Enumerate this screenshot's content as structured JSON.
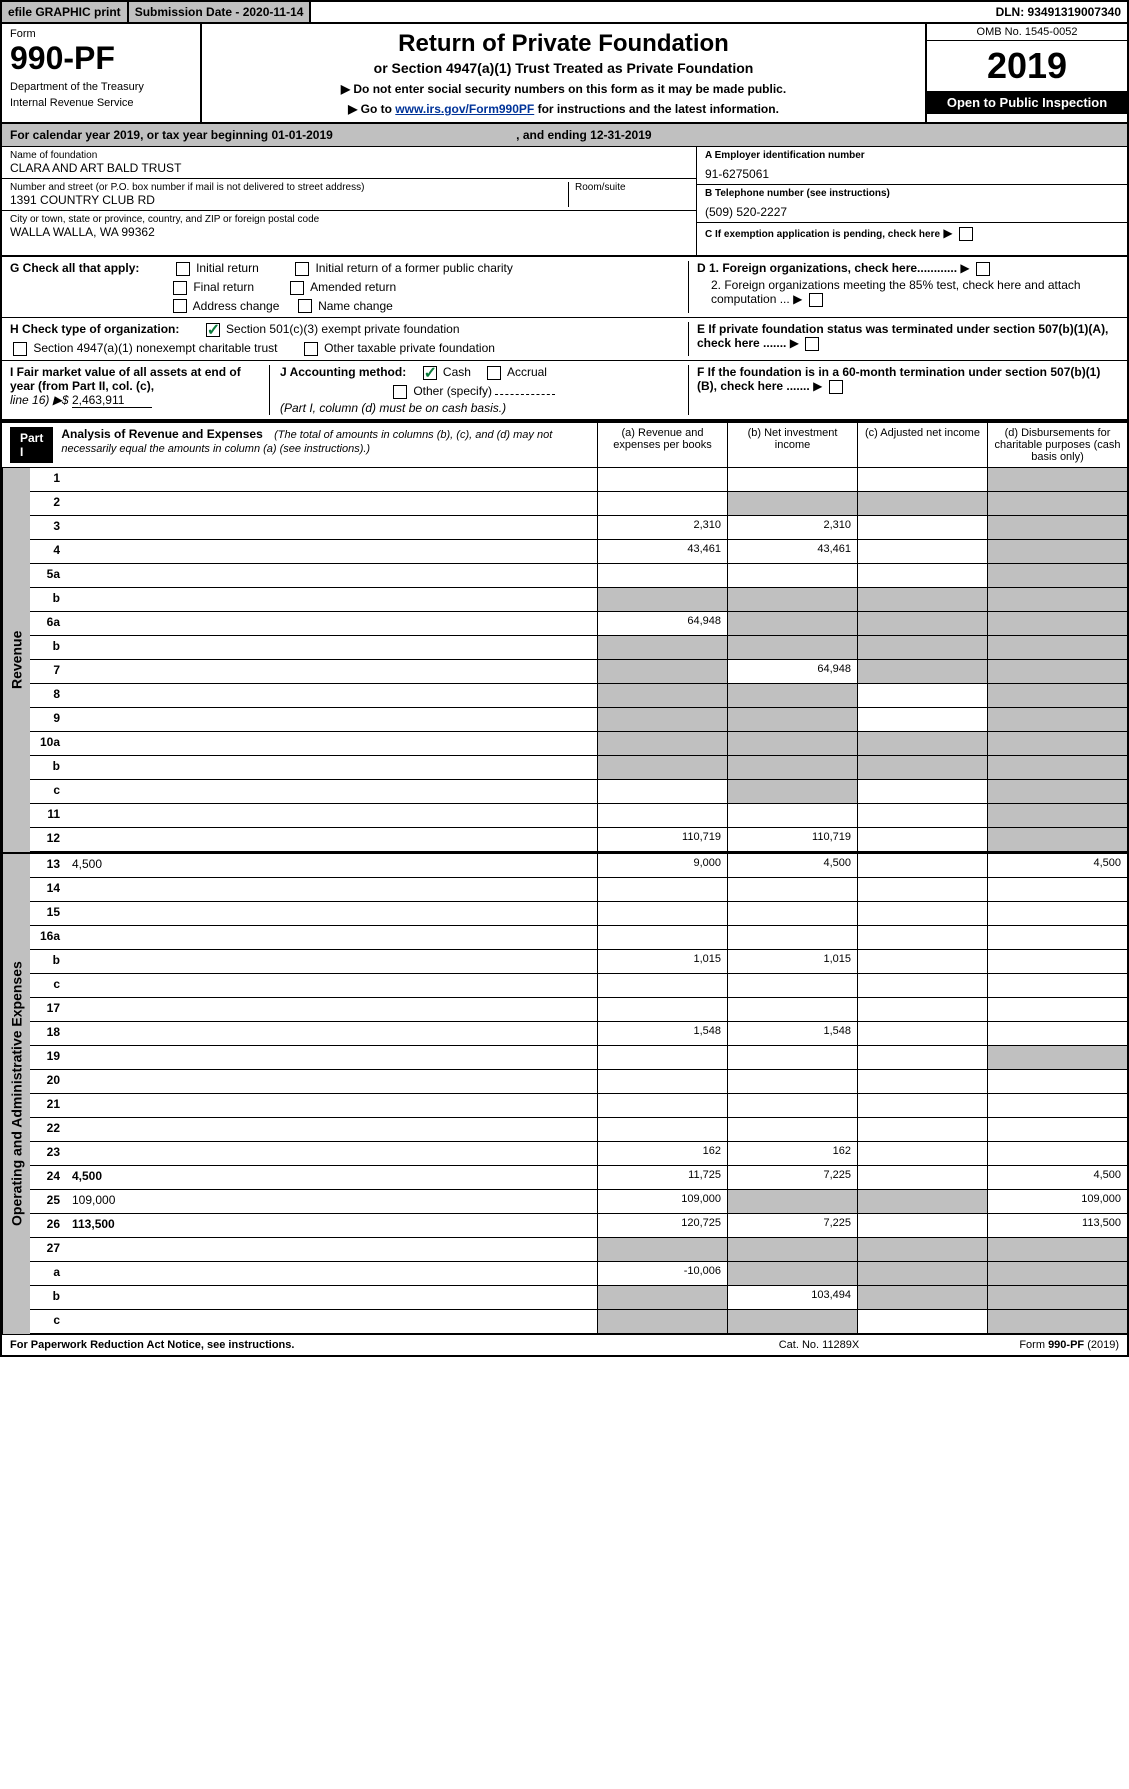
{
  "topbar": {
    "efile": "efile GRAPHIC print",
    "subdate_label": "Submission Date - 2020-11-14",
    "dln": "DLN: 93491319007340"
  },
  "header": {
    "form_label": "Form",
    "form_no": "990-PF",
    "dept1": "Department of the Treasury",
    "dept2": "Internal Revenue Service",
    "title": "Return of Private Foundation",
    "subtitle": "or Section 4947(a)(1) Trust Treated as Private Foundation",
    "note1": "▶ Do not enter social security numbers on this form as it may be made public.",
    "note2_pre": "▶ Go to ",
    "note2_link": "www.irs.gov/Form990PF",
    "note2_post": " for instructions and the latest information.",
    "omb": "OMB No. 1545-0052",
    "year": "2019",
    "open": "Open to Public Inspection"
  },
  "calyear": {
    "text": "For calendar year 2019, or tax year beginning 01-01-2019",
    "ending": ", and ending 12-31-2019"
  },
  "info": {
    "name_label": "Name of foundation",
    "name": "CLARA AND ART BALD TRUST",
    "addr_label": "Number and street (or P.O. box number if mail is not delivered to street address)",
    "addr": "1391 COUNTRY CLUB RD",
    "room_label": "Room/suite",
    "city_label": "City or town, state or province, country, and ZIP or foreign postal code",
    "city": "WALLA WALLA, WA  99362",
    "ein_label": "A Employer identification number",
    "ein": "91-6275061",
    "phone_label": "B Telephone number (see instructions)",
    "phone": "(509) 520-2227",
    "c_label": "C If exemption application is pending, check here",
    "d1_label": "D 1. Foreign organizations, check here............",
    "d2_label": "2. Foreign organizations meeting the 85% test, check here and attach computation ...",
    "e_label": "E  If private foundation status was terminated under section 507(b)(1)(A), check here .......",
    "f_label": "F  If the foundation is in a 60-month termination under section 507(b)(1)(B), check here ......."
  },
  "checks": {
    "g_label": "G Check all that apply:",
    "initial": "Initial return",
    "initial_former": "Initial return of a former public charity",
    "final": "Final return",
    "amended": "Amended return",
    "addr_change": "Address change",
    "name_change": "Name change",
    "h_label": "H Check type of organization:",
    "h_501c3": "Section 501(c)(3) exempt private foundation",
    "h_4947": "Section 4947(a)(1) nonexempt charitable trust",
    "h_other": "Other taxable private foundation",
    "i_label": "I Fair market value of all assets at end of year (from Part II, col. (c),",
    "i_line": "line 16) ▶$ ",
    "i_val": "2,463,911",
    "j_label": "J Accounting method:",
    "j_cash": "Cash",
    "j_accrual": "Accrual",
    "j_other": "Other (specify)",
    "j_note": "(Part I, column (d) must be on cash basis.)"
  },
  "part1": {
    "label": "Part I",
    "title": "Analysis of Revenue and Expenses",
    "title_note": "(The total of amounts in columns (b), (c), and (d) may not necessarily equal the amounts in column (a) (see instructions).)",
    "col_a": "(a)   Revenue and expenses per books",
    "col_b": "(b)  Net investment income",
    "col_c": "(c)  Adjusted net income",
    "col_d": "(d)  Disbursements for charitable purposes (cash basis only)"
  },
  "side_labels": {
    "revenue": "Revenue",
    "expenses": "Operating and Administrative Expenses"
  },
  "rows": [
    {
      "n": "1",
      "d": "",
      "a": "",
      "b": "",
      "c": "",
      "shade_d": true
    },
    {
      "n": "2",
      "d": "",
      "a": "",
      "b": "",
      "c": "",
      "shade_d": true,
      "shade_b": true,
      "shade_c": true
    },
    {
      "n": "3",
      "d": "",
      "a": "2,310",
      "b": "2,310",
      "c": "",
      "shade_d": true
    },
    {
      "n": "4",
      "d": "",
      "a": "43,461",
      "b": "43,461",
      "c": "",
      "shade_d": true
    },
    {
      "n": "5a",
      "d": "",
      "a": "",
      "b": "",
      "c": "",
      "shade_d": true
    },
    {
      "n": "b",
      "d": "",
      "a": "",
      "b": "",
      "c": "",
      "shade_a": true,
      "shade_b": true,
      "shade_c": true,
      "shade_d": true
    },
    {
      "n": "6a",
      "d": "",
      "a": "64,948",
      "b": "",
      "c": "",
      "shade_b": true,
      "shade_c": true,
      "shade_d": true
    },
    {
      "n": "b",
      "d": "",
      "a": "",
      "b": "",
      "c": "",
      "shade_a": true,
      "shade_b": true,
      "shade_c": true,
      "shade_d": true
    },
    {
      "n": "7",
      "d": "",
      "a": "",
      "b": "64,948",
      "c": "",
      "shade_a": true,
      "shade_c": true,
      "shade_d": true
    },
    {
      "n": "8",
      "d": "",
      "a": "",
      "b": "",
      "c": "",
      "shade_a": true,
      "shade_b": true,
      "shade_d": true
    },
    {
      "n": "9",
      "d": "",
      "a": "",
      "b": "",
      "c": "",
      "shade_a": true,
      "shade_b": true,
      "shade_d": true
    },
    {
      "n": "10a",
      "d": "",
      "a": "",
      "b": "",
      "c": "",
      "shade_a": true,
      "shade_b": true,
      "shade_c": true,
      "shade_d": true
    },
    {
      "n": "b",
      "d": "",
      "a": "",
      "b": "",
      "c": "",
      "shade_a": true,
      "shade_b": true,
      "shade_c": true,
      "shade_d": true
    },
    {
      "n": "c",
      "d": "",
      "a": "",
      "b": "",
      "c": "",
      "shade_b": true,
      "shade_d": true
    },
    {
      "n": "11",
      "d": "",
      "a": "",
      "b": "",
      "c": "",
      "shade_d": true
    },
    {
      "n": "12",
      "d": "",
      "a": "110,719",
      "b": "110,719",
      "c": "",
      "shade_d": true,
      "bold": true
    }
  ],
  "exp_rows": [
    {
      "n": "13",
      "d": "4,500",
      "a": "9,000",
      "b": "4,500",
      "c": ""
    },
    {
      "n": "14",
      "d": "",
      "a": "",
      "b": "",
      "c": ""
    },
    {
      "n": "15",
      "d": "",
      "a": "",
      "b": "",
      "c": ""
    },
    {
      "n": "16a",
      "d": "",
      "a": "",
      "b": "",
      "c": ""
    },
    {
      "n": "b",
      "d": "",
      "a": "1,015",
      "b": "1,015",
      "c": ""
    },
    {
      "n": "c",
      "d": "",
      "a": "",
      "b": "",
      "c": ""
    },
    {
      "n": "17",
      "d": "",
      "a": "",
      "b": "",
      "c": ""
    },
    {
      "n": "18",
      "d": "",
      "a": "1,548",
      "b": "1,548",
      "c": ""
    },
    {
      "n": "19",
      "d": "",
      "a": "",
      "b": "",
      "c": "",
      "shade_d": true
    },
    {
      "n": "20",
      "d": "",
      "a": "",
      "b": "",
      "c": ""
    },
    {
      "n": "21",
      "d": "",
      "a": "",
      "b": "",
      "c": ""
    },
    {
      "n": "22",
      "d": "",
      "a": "",
      "b": "",
      "c": ""
    },
    {
      "n": "23",
      "d": "",
      "a": "162",
      "b": "162",
      "c": ""
    },
    {
      "n": "24",
      "d": "4,500",
      "a": "11,725",
      "b": "7,225",
      "c": "",
      "bold": true
    },
    {
      "n": "25",
      "d": "109,000",
      "a": "109,000",
      "b": "",
      "c": "",
      "shade_b": true,
      "shade_c": true
    },
    {
      "n": "26",
      "d": "113,500",
      "a": "120,725",
      "b": "7,225",
      "c": "",
      "bold": true
    },
    {
      "n": "27",
      "d": "",
      "a": "",
      "b": "",
      "c": "",
      "shade_a": true,
      "shade_b": true,
      "shade_c": true,
      "shade_d": true
    },
    {
      "n": "a",
      "d": "",
      "a": "-10,006",
      "b": "",
      "c": "",
      "shade_b": true,
      "shade_c": true,
      "shade_d": true,
      "bold": true
    },
    {
      "n": "b",
      "d": "",
      "a": "",
      "b": "103,494",
      "c": "",
      "shade_a": true,
      "shade_c": true,
      "shade_d": true,
      "bold": true
    },
    {
      "n": "c",
      "d": "",
      "a": "",
      "b": "",
      "c": "",
      "shade_a": true,
      "shade_b": true,
      "shade_d": true,
      "bold": true
    }
  ],
  "footer": {
    "left": "For Paperwork Reduction Act Notice, see instructions.",
    "mid": "Cat. No. 11289X",
    "right": "Form 990-PF (2019)"
  }
}
